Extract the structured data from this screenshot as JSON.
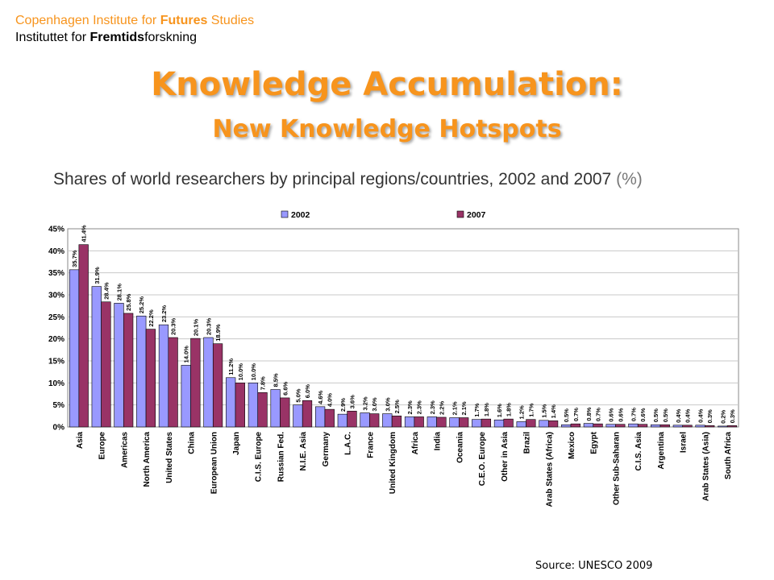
{
  "header": {
    "org_line1_a": "Copenhagen Institute for ",
    "org_line1_b": "Futures",
    "org_line1_c": " Studies",
    "org_line2_a": "Instituttet for ",
    "org_line2_b": "Fremtids",
    "org_line2_c": "forskning",
    "title": "Knowledge Accumulation:",
    "subtitle": "New Knowledge Hotspots"
  },
  "colors": {
    "accent": "#f7941d",
    "series_2002": "#9999ff",
    "series_2007": "#993366"
  },
  "footer": {
    "source": "Source: UNESCO 2009"
  },
  "chart_data": {
    "type": "bar",
    "title": "Shares of world researchers by principal regions/countries, 2002 and 2007",
    "unit": "(%)",
    "legend_position": "top",
    "ylim": [
      0,
      45
    ],
    "yticks": [
      "0%",
      "5%",
      "10%",
      "15%",
      "20%",
      "25%",
      "30%",
      "35%",
      "40%",
      "45%"
    ],
    "grid": true,
    "categories": [
      "Asia",
      "Europe",
      "Americas",
      "North America",
      "United States",
      "China",
      "European Union",
      "Japan",
      "C.I.S. Europe",
      "Russian Fed.",
      "N.I.E. Asia",
      "Germany",
      "L.A.C.",
      "France",
      "United Kingdom",
      "Africa",
      "India",
      "Oceania",
      "C.E.O. Europe",
      "Other in Asia",
      "Brazil",
      "Arab States (Africa)",
      "Mexico",
      "Egypt",
      "Other Sub-Saharan",
      "C.I.S. Asia",
      "Argentina",
      "Israel",
      "Arab States (Asia)",
      "South Africa"
    ],
    "series": [
      {
        "name": "2002",
        "values": [
          35.7,
          31.9,
          28.1,
          25.2,
          23.2,
          14.0,
          20.3,
          11.2,
          10.0,
          8.5,
          5.0,
          4.6,
          2.9,
          3.2,
          3.0,
          2.3,
          2.3,
          2.1,
          1.7,
          1.6,
          1.2,
          1.5,
          0.5,
          0.8,
          0.6,
          0.7,
          0.5,
          0.4,
          0.4,
          0.2
        ],
        "labels": [
          "35.7%",
          "31.9%",
          "28.1%",
          "25.2%",
          "23.2%",
          "14.0%",
          "20.3%",
          "11.2%",
          "10.0%",
          "8.5%",
          "5.0%",
          "4.6%",
          "2.9%",
          "3.2%",
          "3.0%",
          "2.3%",
          "2.3%",
          "2.1%",
          "1.7%",
          "1.6%",
          "1.2%",
          "1.5%",
          "0.5%",
          "0.8%",
          "0.6%",
          "0.7%",
          "0.5%",
          "0.4%",
          "0.4%",
          "0.2%"
        ]
      },
      {
        "name": "2007",
        "values": [
          41.4,
          28.4,
          25.8,
          22.2,
          20.3,
          20.1,
          18.9,
          10.0,
          7.8,
          6.6,
          6.0,
          4.0,
          3.6,
          3.0,
          2.5,
          2.3,
          2.2,
          2.1,
          1.8,
          1.8,
          1.7,
          1.4,
          0.7,
          0.7,
          0.6,
          0.6,
          0.5,
          0.4,
          0.3,
          0.3
        ],
        "labels": [
          "41.4%",
          "28.4%",
          "25.8%",
          "22.2%",
          "20.3%",
          "20.1%",
          "18.9%",
          "10.0%",
          "7.8%",
          "6.6%",
          "6.0%",
          "4.0%",
          "3.6%",
          "3.0%",
          "2.5%",
          "2.3%",
          "2.2%",
          "2.1%",
          "1.8%",
          "1.8%",
          "1.7%",
          "1.4%",
          "0.7%",
          "0.7%",
          "0.6%",
          "0.6%",
          "0.5%",
          "0.4%",
          "0.3%",
          "0.3%"
        ]
      }
    ]
  }
}
